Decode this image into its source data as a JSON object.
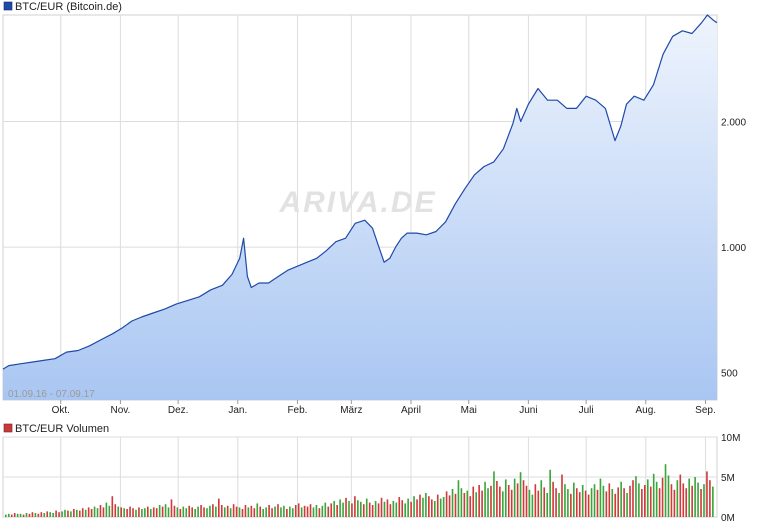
{
  "chart_data": [
    {
      "type": "area",
      "scale": "log",
      "legend": "BTC/EUR (Bitcoin.de)",
      "legend_color": "#1f4aa8",
      "date_range": "01.09.16 - 07.09.17",
      "watermark": "ARIVA.DE",
      "x_ticks": [
        "Okt.",
        "Nov.",
        "Dez.",
        "Jan.",
        "Feb.",
        "März",
        "April",
        "Mai",
        "Juni",
        "Juli",
        "Aug.",
        "Sep."
      ],
      "y_ticks": [
        {
          "value": 500,
          "label": "500"
        },
        {
          "value": 1000,
          "label": "1.000"
        },
        {
          "value": 2000,
          "label": "2.000"
        }
      ],
      "ylim": [
        430,
        3600
      ],
      "line_color": "#1f4aa8",
      "fill_top": "#eef4fd",
      "fill_bottom": "#a9c6f2",
      "grid": true,
      "x": [
        "2016-09-01",
        "2016-09-04",
        "2016-09-10",
        "2016-09-16",
        "2016-09-22",
        "2016-09-28",
        "2016-10-04",
        "2016-10-10",
        "2016-10-16",
        "2016-10-22",
        "2016-10-28",
        "2016-11-02",
        "2016-11-07",
        "2016-11-12",
        "2016-11-18",
        "2016-11-24",
        "2016-11-30",
        "2016-12-06",
        "2016-12-12",
        "2016-12-18",
        "2016-12-24",
        "2016-12-29",
        "2017-01-02",
        "2017-01-04",
        "2017-01-06",
        "2017-01-08",
        "2017-01-12",
        "2017-01-17",
        "2017-01-22",
        "2017-01-27",
        "2017-02-01",
        "2017-02-06",
        "2017-02-11",
        "2017-02-16",
        "2017-02-21",
        "2017-02-26",
        "2017-03-03",
        "2017-03-08",
        "2017-03-12",
        "2017-03-15",
        "2017-03-18",
        "2017-03-21",
        "2017-03-24",
        "2017-03-27",
        "2017-03-30",
        "2017-04-04",
        "2017-04-09",
        "2017-04-14",
        "2017-04-19",
        "2017-04-24",
        "2017-04-29",
        "2017-05-04",
        "2017-05-09",
        "2017-05-14",
        "2017-05-19",
        "2017-05-24",
        "2017-05-26",
        "2017-05-28",
        "2017-06-01",
        "2017-06-06",
        "2017-06-11",
        "2017-06-16",
        "2017-06-21",
        "2017-06-26",
        "2017-07-01",
        "2017-07-06",
        "2017-07-11",
        "2017-07-16",
        "2017-07-19",
        "2017-07-22",
        "2017-07-26",
        "2017-07-31",
        "2017-08-05",
        "2017-08-10",
        "2017-08-15",
        "2017-08-20",
        "2017-08-25",
        "2017-08-30",
        "2017-09-02",
        "2017-09-05",
        "2017-09-07"
      ],
      "values": [
        510,
        520,
        525,
        530,
        535,
        540,
        560,
        565,
        580,
        600,
        620,
        640,
        665,
        680,
        695,
        710,
        730,
        745,
        760,
        790,
        810,
        860,
        940,
        1050,
        850,
        800,
        820,
        820,
        850,
        880,
        900,
        920,
        940,
        980,
        1030,
        1050,
        1140,
        1160,
        1110,
        1010,
        920,
        940,
        1000,
        1050,
        1080,
        1080,
        1070,
        1090,
        1150,
        1270,
        1380,
        1490,
        1560,
        1600,
        1720,
        1980,
        2150,
        2000,
        2200,
        2400,
        2250,
        2250,
        2150,
        2150,
        2300,
        2250,
        2150,
        1800,
        1950,
        2200,
        2300,
        2250,
        2450,
        2900,
        3200,
        3300,
        3250,
        3450,
        3600,
        3500,
        3450
      ]
    },
    {
      "type": "bar",
      "legend": "BTC/EUR Volumen",
      "legend_color": "#c83a3a",
      "y_ticks": [
        {
          "value": 0,
          "label": "0M"
        },
        {
          "value": 5,
          "label": "5M"
        },
        {
          "value": 10,
          "label": "10M"
        }
      ],
      "ylim": [
        0,
        10
      ],
      "unit": "Mio. EUR",
      "up_color": "#3aa63a",
      "down_color": "#d03a3a",
      "values": [
        0.3,
        0.4,
        0.3,
        0.5,
        0.4,
        0.4,
        0.3,
        0.5,
        0.4,
        0.6,
        0.5,
        0.4,
        0.6,
        0.5,
        0.7,
        0.6,
        0.5,
        0.8,
        0.6,
        0.7,
        0.9,
        0.8,
        0.7,
        1.0,
        0.9,
        0.8,
        1.1,
        0.9,
        1.2,
        1.0,
        1.3,
        1.1,
        1.5,
        1.2,
        1.8,
        1.4,
        2.6,
        1.6,
        1.3,
        1.2,
        1.1,
        1.0,
        1.3,
        1.1,
        0.9,
        1.2,
        1.0,
        1.1,
        1.3,
        1.0,
        1.2,
        1.1,
        1.5,
        1.3,
        1.6,
        1.2,
        2.2,
        1.4,
        1.2,
        1.0,
        1.3,
        1.1,
        1.4,
        1.2,
        1.0,
        1.3,
        1.5,
        1.2,
        1.1,
        1.4,
        1.6,
        1.3,
        2.3,
        1.5,
        1.2,
        1.4,
        1.1,
        1.6,
        1.3,
        1.2,
        1.0,
        1.5,
        1.2,
        1.4,
        1.1,
        1.7,
        1.3,
        1.0,
        1.2,
        1.5,
        1.1,
        1.3,
        1.6,
        1.2,
        1.4,
        1.0,
        1.3,
        1.1,
        1.5,
        1.7,
        1.2,
        1.4,
        1.3,
        1.6,
        1.2,
        1.5,
        1.1,
        1.4,
        1.8,
        1.3,
        1.7,
        2.0,
        1.5,
        2.2,
        1.8,
        2.4,
        2.0,
        1.7,
        2.6,
        2.1,
        1.9,
        1.6,
        2.3,
        1.8,
        1.5,
        2.0,
        1.7,
        2.4,
        1.9,
        2.2,
        1.6,
        2.0,
        1.8,
        2.5,
        2.1,
        1.7,
        2.3,
        1.9,
        2.6,
        2.2,
        2.8,
        2.4,
        3.0,
        2.6,
        2.2,
        2.0,
        2.8,
        2.3,
        2.5,
        3.2,
        2.7,
        3.5,
        2.9,
        4.6,
        3.6,
        3.0,
        3.3,
        2.6,
        3.8,
        3.1,
        4.0,
        3.3,
        4.4,
        3.6,
        3.9,
        5.7,
        4.5,
        3.8,
        3.2,
        4.7,
        4.0,
        3.4,
        4.8,
        4.2,
        5.6,
        4.6,
        3.9,
        3.4,
        2.8,
        4.1,
        3.3,
        4.6,
        3.7,
        3.0,
        5.9,
        4.4,
        3.6,
        3.0,
        5.3,
        4.1,
        3.5,
        2.9,
        4.3,
        3.6,
        3.1,
        4.0,
        3.3,
        2.8,
        3.6,
        4.1,
        3.4,
        4.8,
        3.9,
        3.2,
        4.2,
        3.5,
        2.9,
        3.7,
        4.4,
        3.6,
        3.0,
        3.9,
        4.6,
        5.1,
        4.2,
        3.5,
        4.0,
        4.7,
        3.8,
        5.4,
        4.4,
        3.6,
        4.9,
        6.6,
        5.2,
        4.1,
        3.4,
        4.6,
        5.3,
        4.2,
        3.6,
        4.8,
        3.9,
        5.0,
        4.3,
        3.5,
        4.1,
        5.7,
        4.6,
        3.8
      ],
      "directions": "uudduududdudduduudduudududdudduudduuddududdduduududduduudduduudduudduududdududduddudduduudduduuduudduddduuduudduduududduududduddudduudduududduudduduudduduududdudduududduuddududduudduduudduduududdudduuduudduddududduudduduudduudduddduduududduuddu"
    }
  ]
}
